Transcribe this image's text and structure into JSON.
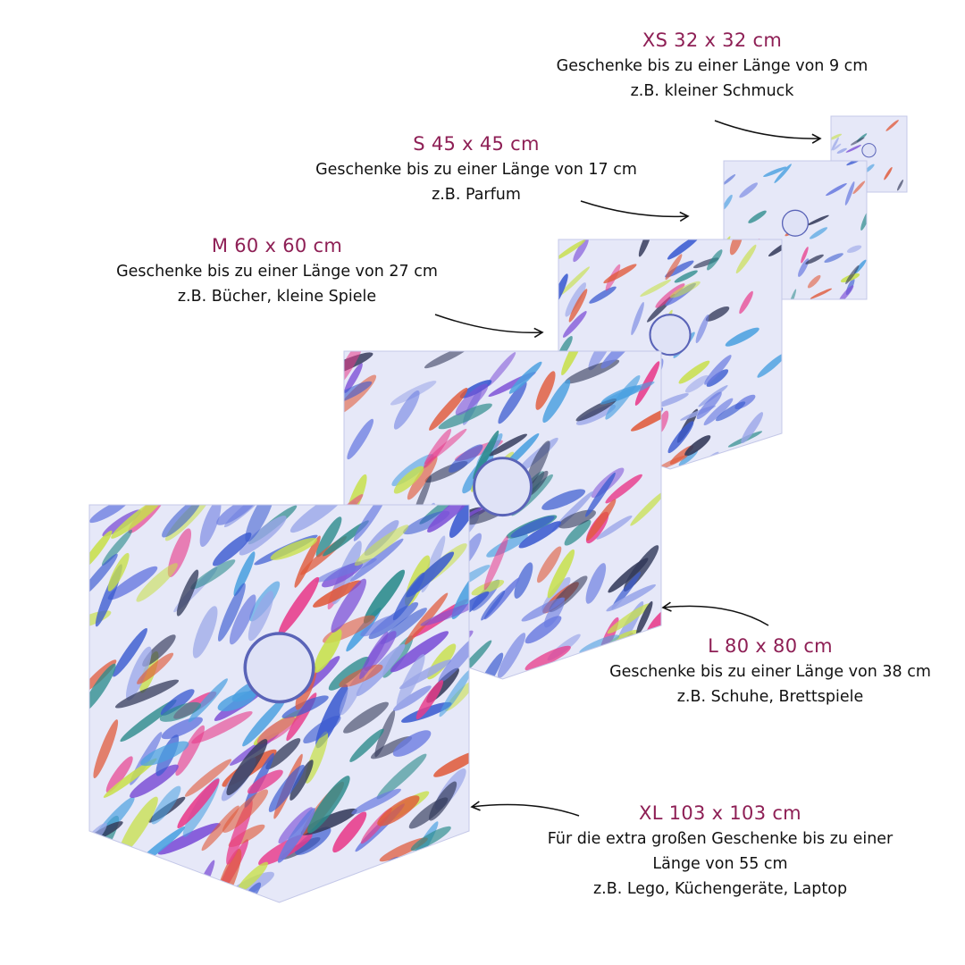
{
  "colors": {
    "title": "#8e1f55",
    "text": "#111111",
    "fabric": "#e6e8f8",
    "arrow": "#111111"
  },
  "sizes": [
    {
      "id": "xs",
      "title": "XS 32 x 32 cm",
      "lines": [
        "Geschenke bis zu einer Länge von 9 cm",
        "z.B. kleiner Schmuck"
      ]
    },
    {
      "id": "s",
      "title": "S 45 x 45 cm",
      "lines": [
        "Geschenke bis zu einer Länge von 17 cm",
        "z.B. Parfum"
      ]
    },
    {
      "id": "m",
      "title": "M 60 x 60 cm",
      "lines": [
        "Geschenke bis zu einer Länge von 27 cm",
        "z.B. Bücher, kleine Spiele"
      ]
    },
    {
      "id": "l",
      "title": "L 80 x 80 cm",
      "lines": [
        "Geschenke bis zu einer Länge von 38 cm",
        "z.B. Schuhe, Brettspiele"
      ]
    },
    {
      "id": "xl",
      "title": "XL 103 x 103 cm",
      "lines": [
        "Für die extra großen Geschenke bis zu einer",
        "Länge von 55 cm",
        "z.B. Lego, Küchengeräte, Laptop"
      ]
    }
  ]
}
